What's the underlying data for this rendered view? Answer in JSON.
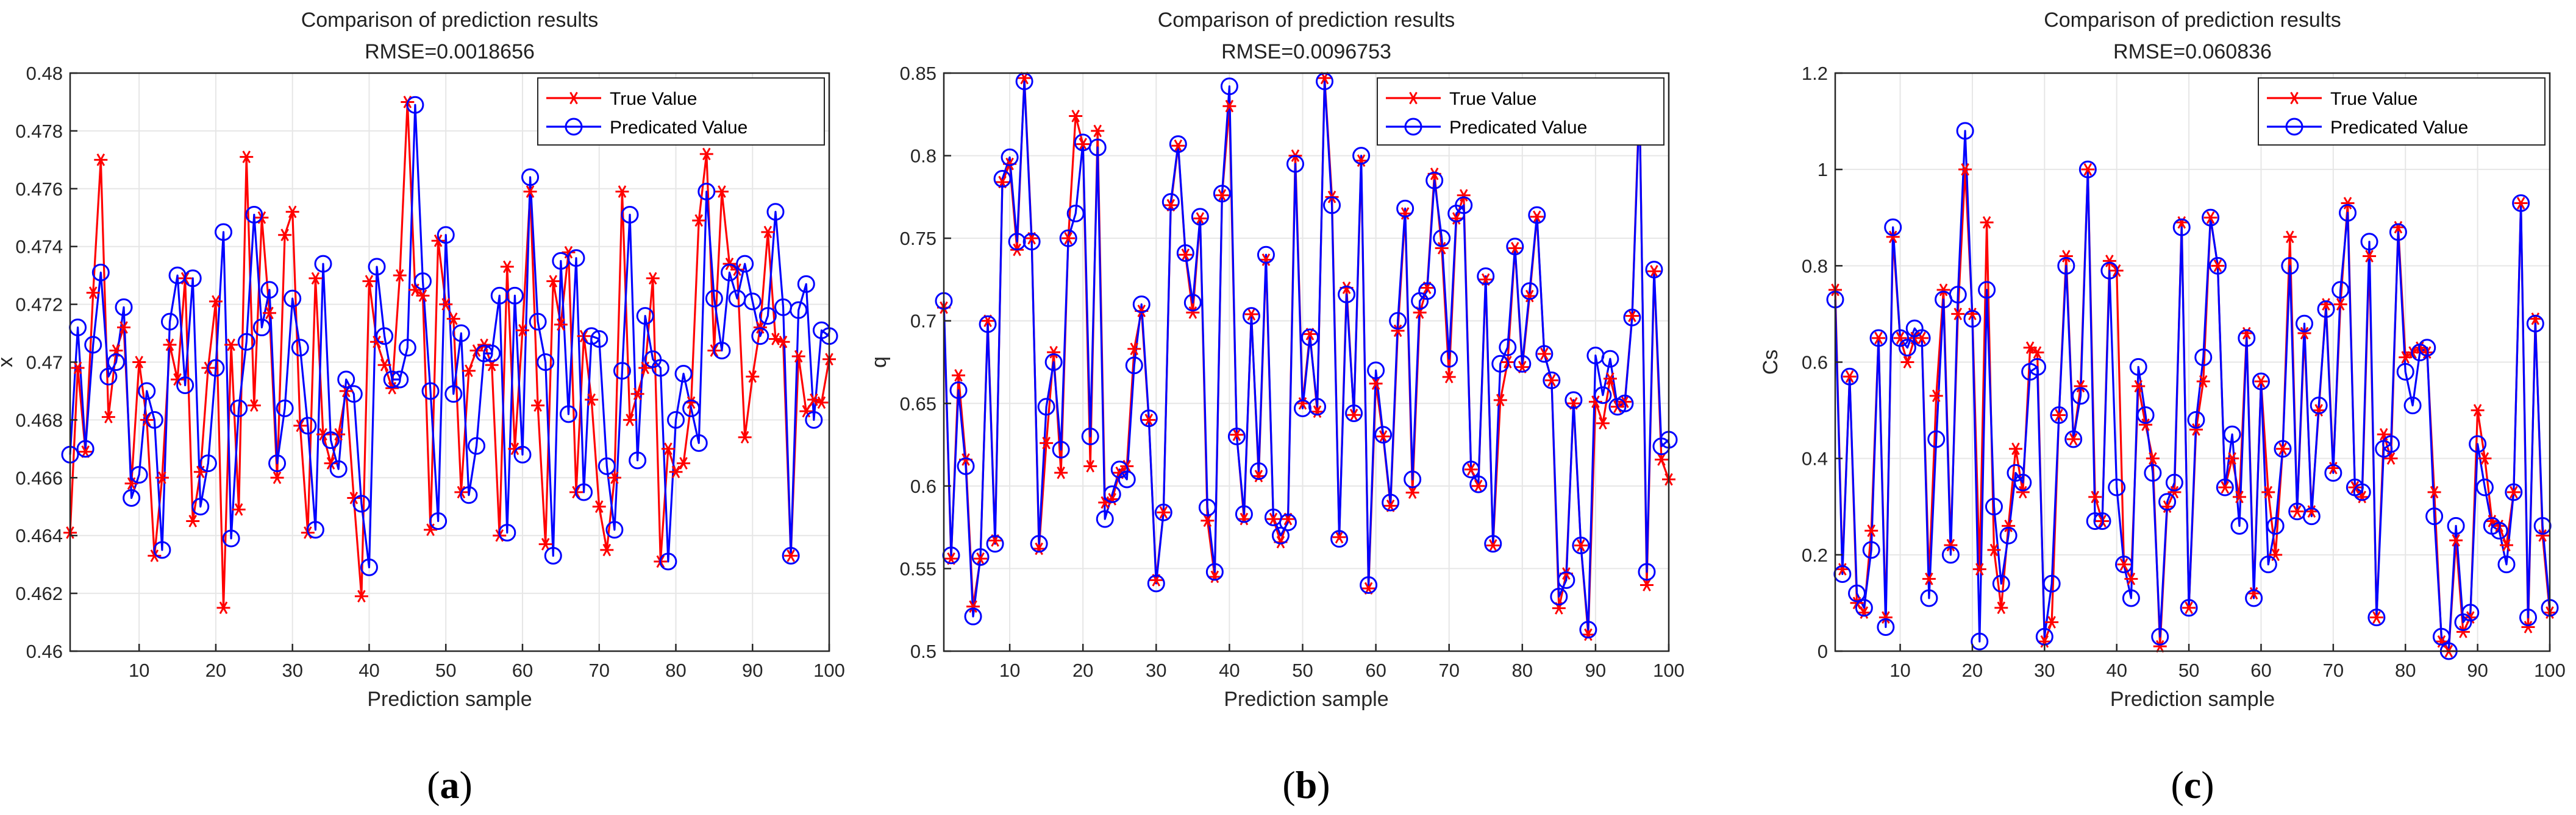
{
  "colors": {
    "true": "#ff0000",
    "pred": "#0000ff",
    "grid": "#e6e6e6",
    "axis": "#262626"
  },
  "legend": {
    "true_label": "True Value",
    "pred_label": "Predicated Value"
  },
  "chart_data": [
    {
      "type": "line",
      "caption": "a",
      "title": "Comparison of prediction results",
      "subtitle": "RMSE=0.0018656",
      "xlabel": "Prediction sample",
      "ylabel": "x",
      "xlim": [
        1,
        100
      ],
      "ylim": [
        0.46,
        0.48
      ],
      "xticks": [
        10,
        20,
        30,
        40,
        50,
        60,
        70,
        80,
        90,
        100
      ],
      "yticks": [
        0.46,
        0.462,
        0.464,
        0.466,
        0.468,
        0.47,
        0.472,
        0.474,
        0.476,
        0.478,
        0.48
      ],
      "ytick_labels": [
        "0.46",
        "0.462",
        "0.464",
        "0.466",
        "0.468",
        "0.47",
        "0.472",
        "0.474",
        "0.476",
        "0.478",
        "0.48"
      ],
      "legend_position": "top-right",
      "x": [
        1,
        2,
        3,
        4,
        5,
        6,
        7,
        8,
        9,
        10,
        11,
        12,
        13,
        14,
        15,
        16,
        17,
        18,
        19,
        20,
        21,
        22,
        23,
        24,
        25,
        26,
        27,
        28,
        29,
        30,
        31,
        32,
        33,
        34,
        35,
        36,
        37,
        38,
        39,
        40,
        41,
        42,
        43,
        44,
        45,
        46,
        47,
        48,
        49,
        50,
        51,
        52,
        53,
        54,
        55,
        56,
        57,
        58,
        59,
        60,
        61,
        62,
        63,
        64,
        65,
        66,
        67,
        68,
        69,
        70,
        71,
        72,
        73,
        74,
        75,
        76,
        77,
        78,
        79,
        80,
        81,
        82,
        83,
        84,
        85,
        86,
        87,
        88,
        89,
        90,
        91,
        92,
        93,
        94,
        95,
        96,
        97,
        98,
        99,
        100
      ],
      "series": [
        {
          "name": "True Value",
          "values": [
            0.4641,
            0.4698,
            0.4669,
            0.4724,
            0.477,
            0.4681,
            0.4704,
            0.4712,
            0.4658,
            0.47,
            0.468,
            0.4633,
            0.466,
            0.4706,
            0.4694,
            0.4729,
            0.4645,
            0.4662,
            0.4698,
            0.4721,
            0.4615,
            0.4706,
            0.4649,
            0.4771,
            0.4685,
            0.475,
            0.4717,
            0.466,
            0.4744,
            0.4752,
            0.4678,
            0.4641,
            0.4729,
            0.4675,
            0.4665,
            0.4675,
            0.469,
            0.4653,
            0.4619,
            0.4728,
            0.4707,
            0.4699,
            0.4691,
            0.473,
            0.479,
            0.4725,
            0.4723,
            0.4642,
            0.4742,
            0.472,
            0.4715,
            0.4655,
            0.4697,
            0.4704,
            0.4706,
            0.4699,
            0.464,
            0.4733,
            0.467,
            0.4711,
            0.4759,
            0.4685,
            0.4637,
            0.4728,
            0.4713,
            0.4738,
            0.4655,
            0.4709,
            0.4687,
            0.465,
            0.4635,
            0.466,
            0.4759,
            0.468,
            0.4689,
            0.4698,
            0.4729,
            0.4631,
            0.467,
            0.4662,
            0.4665,
            0.4686,
            0.4749,
            0.4772,
            0.4704,
            0.4759,
            0.4734,
            0.4732,
            0.4674,
            0.4695,
            0.4712,
            0.4745,
            0.4708,
            0.4707,
            0.4633,
            0.4702,
            0.4683,
            0.4687,
            0.4686,
            0.4701
          ]
        },
        {
          "name": "Predicated Value",
          "values": [
            0.4668,
            0.4712,
            0.467,
            0.4706,
            0.4731,
            0.4695,
            0.47,
            0.4719,
            0.4653,
            0.4661,
            0.469,
            0.468,
            0.4635,
            0.4714,
            0.473,
            0.4692,
            0.4729,
            0.465,
            0.4665,
            0.4698,
            0.4745,
            0.4639,
            0.4684,
            0.4707,
            0.4751,
            0.4712,
            0.4725,
            0.4665,
            0.4684,
            0.4722,
            0.4705,
            0.4678,
            0.4642,
            0.4734,
            0.4673,
            0.4663,
            0.4694,
            0.4689,
            0.4651,
            0.4629,
            0.4733,
            0.4709,
            0.4694,
            0.4694,
            0.4705,
            0.4789,
            0.4728,
            0.469,
            0.4645,
            0.4744,
            0.4689,
            0.471,
            0.4654,
            0.4671,
            0.4703,
            0.4703,
            0.4723,
            0.4641,
            0.4723,
            0.4668,
            0.4764,
            0.4714,
            0.47,
            0.4633,
            0.4735,
            0.4682,
            0.4736,
            0.4655,
            0.4709,
            0.4708,
            0.4664,
            0.4642,
            0.4697,
            0.4751,
            0.4666,
            0.4716,
            0.4701,
            0.4698,
            0.4631,
            0.468,
            0.4696,
            0.4684,
            0.4672,
            0.4759,
            0.4722,
            0.4704,
            0.4731,
            0.4722,
            0.4734,
            0.4721,
            0.4709,
            0.4716,
            0.4752,
            0.4719,
            0.4633,
            0.4718,
            0.4727,
            0.468,
            0.4711,
            0.4709
          ]
        }
      ]
    },
    {
      "type": "line",
      "caption": "b",
      "title": "Comparison of prediction results",
      "subtitle": "RMSE=0.0096753",
      "xlabel": "Prediction sample",
      "ylabel": "q",
      "xlim": [
        1,
        100
      ],
      "ylim": [
        0.5,
        0.85
      ],
      "xticks": [
        10,
        20,
        30,
        40,
        50,
        60,
        70,
        80,
        90,
        100
      ],
      "yticks": [
        0.5,
        0.55,
        0.6,
        0.65,
        0.7,
        0.75,
        0.8,
        0.85
      ],
      "ytick_labels": [
        "0.5",
        "0.55",
        "0.6",
        "0.65",
        "0.7",
        "0.75",
        "0.8",
        "0.85"
      ],
      "legend_position": "top-right",
      "x": [
        1,
        2,
        3,
        4,
        5,
        6,
        7,
        8,
        9,
        10,
        11,
        12,
        13,
        14,
        15,
        16,
        17,
        18,
        19,
        20,
        21,
        22,
        23,
        24,
        25,
        26,
        27,
        28,
        29,
        30,
        31,
        32,
        33,
        34,
        35,
        36,
        37,
        38,
        39,
        40,
        41,
        42,
        43,
        44,
        45,
        46,
        47,
        48,
        49,
        50,
        51,
        52,
        53,
        54,
        55,
        56,
        57,
        58,
        59,
        60,
        61,
        62,
        63,
        64,
        65,
        66,
        67,
        68,
        69,
        70,
        71,
        72,
        73,
        74,
        75,
        76,
        77,
        78,
        79,
        80,
        81,
        82,
        83,
        84,
        85,
        86,
        87,
        88,
        89,
        90,
        91,
        92,
        93,
        94,
        95,
        96,
        97,
        98,
        99,
        100
      ],
      "series": [
        {
          "name": "True Value",
          "values": [
            0.708,
            0.556,
            0.667,
            0.616,
            0.527,
            0.556,
            0.7,
            0.567,
            0.784,
            0.795,
            0.743,
            0.847,
            0.75,
            0.562,
            0.626,
            0.681,
            0.608,
            0.75,
            0.824,
            0.807,
            0.612,
            0.815,
            0.59,
            0.592,
            0.608,
            0.612,
            0.683,
            0.706,
            0.64,
            0.543,
            0.584,
            0.77,
            0.806,
            0.74,
            0.705,
            0.762,
            0.579,
            0.545,
            0.776,
            0.83,
            0.631,
            0.58,
            0.704,
            0.606,
            0.737,
            0.58,
            0.566,
            0.58,
            0.8,
            0.65,
            0.692,
            0.645,
            0.847,
            0.775,
            0.569,
            0.72,
            0.643,
            0.797,
            0.538,
            0.662,
            0.63,
            0.588,
            0.694,
            0.765,
            0.596,
            0.705,
            0.72,
            0.789,
            0.744,
            0.666,
            0.762,
            0.776,
            0.61,
            0.6,
            0.725,
            0.564,
            0.652,
            0.675,
            0.744,
            0.672,
            0.715,
            0.763,
            0.68,
            0.664,
            0.526,
            0.547,
            0.65,
            0.564,
            0.51,
            0.651,
            0.638,
            0.665,
            0.648,
            0.651,
            0.703,
            0.836,
            0.54,
            0.73,
            0.616,
            0.604
          ]
        },
        {
          "name": "Predicated Value",
          "values": [
            0.712,
            0.558,
            0.658,
            0.612,
            0.521,
            0.557,
            0.698,
            0.565,
            0.786,
            0.799,
            0.748,
            0.845,
            0.748,
            0.565,
            0.648,
            0.675,
            0.622,
            0.75,
            0.765,
            0.808,
            0.63,
            0.805,
            0.58,
            0.595,
            0.61,
            0.604,
            0.673,
            0.71,
            0.641,
            0.541,
            0.584,
            0.772,
            0.807,
            0.741,
            0.711,
            0.763,
            0.587,
            0.548,
            0.777,
            0.842,
            0.63,
            0.583,
            0.703,
            0.609,
            0.74,
            0.581,
            0.57,
            0.578,
            0.795,
            0.647,
            0.69,
            0.648,
            0.845,
            0.77,
            0.568,
            0.716,
            0.644,
            0.8,
            0.54,
            0.67,
            0.631,
            0.59,
            0.7,
            0.768,
            0.604,
            0.712,
            0.718,
            0.785,
            0.75,
            0.677,
            0.765,
            0.77,
            0.61,
            0.601,
            0.727,
            0.565,
            0.674,
            0.684,
            0.745,
            0.674,
            0.718,
            0.764,
            0.68,
            0.664,
            0.533,
            0.543,
            0.652,
            0.564,
            0.513,
            0.679,
            0.655,
            0.677,
            0.648,
            0.65,
            0.702,
            0.832,
            0.548,
            0.731,
            0.624,
            0.628
          ]
        }
      ]
    },
    {
      "type": "line",
      "caption": "c",
      "title": "Comparison of prediction results",
      "subtitle": "RMSE=0.060836",
      "xlabel": "Prediction sample",
      "ylabel": "Cs",
      "xlim": [
        1,
        100
      ],
      "ylim": [
        0,
        1.2
      ],
      "xticks": [
        10,
        20,
        30,
        40,
        50,
        60,
        70,
        80,
        90,
        100
      ],
      "yticks": [
        0,
        0.2,
        0.4,
        0.6,
        0.8,
        1,
        1.2
      ],
      "ytick_labels": [
        "0",
        "0.2",
        "0.4",
        "0.6",
        "0.8",
        "1",
        "1.2"
      ],
      "legend_position": "top-right",
      "x": [
        1,
        2,
        3,
        4,
        5,
        6,
        7,
        8,
        9,
        10,
        11,
        12,
        13,
        14,
        15,
        16,
        17,
        18,
        19,
        20,
        21,
        22,
        23,
        24,
        25,
        26,
        27,
        28,
        29,
        30,
        31,
        32,
        33,
        34,
        35,
        36,
        37,
        38,
        39,
        40,
        41,
        42,
        43,
        44,
        45,
        46,
        47,
        48,
        49,
        50,
        51,
        52,
        53,
        54,
        55,
        56,
        57,
        58,
        59,
        60,
        61,
        62,
        63,
        64,
        65,
        66,
        67,
        68,
        69,
        70,
        71,
        72,
        73,
        74,
        75,
        76,
        77,
        78,
        79,
        80,
        81,
        82,
        83,
        84,
        85,
        86,
        87,
        88,
        89,
        90,
        91,
        92,
        93,
        94,
        95,
        96,
        97,
        98,
        99,
        100
      ],
      "series": [
        {
          "name": "True Value",
          "values": [
            0.75,
            0.17,
            0.57,
            0.1,
            0.08,
            0.25,
            0.65,
            0.07,
            0.86,
            0.65,
            0.6,
            0.65,
            0.65,
            0.15,
            0.53,
            0.75,
            0.22,
            0.7,
            1.0,
            0.7,
            0.17,
            0.89,
            0.21,
            0.09,
            0.26,
            0.42,
            0.33,
            0.63,
            0.62,
            0.02,
            0.06,
            0.49,
            0.82,
            0.44,
            0.55,
            1.0,
            0.32,
            0.27,
            0.81,
            0.79,
            0.18,
            0.15,
            0.55,
            0.47,
            0.4,
            0.01,
            0.3,
            0.33,
            0.89,
            0.09,
            0.46,
            0.56,
            0.9,
            0.8,
            0.34,
            0.4,
            0.32,
            0.66,
            0.12,
            0.56,
            0.33,
            0.2,
            0.42,
            0.86,
            0.29,
            0.66,
            0.29,
            0.5,
            0.72,
            0.38,
            0.72,
            0.93,
            0.34,
            0.32,
            0.82,
            0.07,
            0.45,
            0.4,
            0.88,
            0.61,
            0.62,
            0.63,
            0.62,
            0.33,
            0.02,
            0.0,
            0.23,
            0.04,
            0.07,
            0.5,
            0.4,
            0.27,
            0.26,
            0.22,
            0.33,
            0.93,
            0.05,
            0.69,
            0.24,
            0.08
          ]
        },
        {
          "name": "Predicated Value",
          "values": [
            0.73,
            0.16,
            0.57,
            0.12,
            0.09,
            0.21,
            0.65,
            0.05,
            0.88,
            0.65,
            0.63,
            0.67,
            0.65,
            0.11,
            0.44,
            0.73,
            0.2,
            0.74,
            1.08,
            0.69,
            0.02,
            0.75,
            0.3,
            0.14,
            0.24,
            0.37,
            0.35,
            0.58,
            0.59,
            0.03,
            0.14,
            0.49,
            0.8,
            0.44,
            0.53,
            1.0,
            0.27,
            0.27,
            0.79,
            0.34,
            0.18,
            0.11,
            0.59,
            0.49,
            0.37,
            0.03,
            0.31,
            0.35,
            0.88,
            0.09,
            0.48,
            0.61,
            0.9,
            0.8,
            0.34,
            0.45,
            0.26,
            0.65,
            0.11,
            0.56,
            0.18,
            0.26,
            0.42,
            0.8,
            0.29,
            0.68,
            0.28,
            0.51,
            0.71,
            0.37,
            0.75,
            0.91,
            0.34,
            0.33,
            0.85,
            0.07,
            0.42,
            0.43,
            0.87,
            0.58,
            0.51,
            0.62,
            0.63,
            0.28,
            0.03,
            0.0,
            0.26,
            0.06,
            0.08,
            0.43,
            0.34,
            0.26,
            0.25,
            0.18,
            0.33,
            0.93,
            0.07,
            0.68,
            0.26,
            0.09
          ]
        }
      ]
    }
  ]
}
